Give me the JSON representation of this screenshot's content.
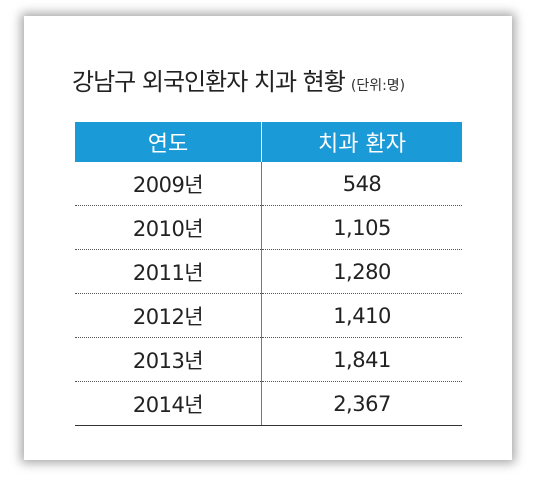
{
  "header": {
    "title": "강남구 외국인환자 치과 현황",
    "unit": "(단위:명)"
  },
  "table": {
    "columns": [
      "연도",
      "치과 환자"
    ],
    "rows": [
      [
        "2009년",
        "548"
      ],
      [
        "2010년",
        "1,105"
      ],
      [
        "2011년",
        "1,280"
      ],
      [
        "2012년",
        "1,410"
      ],
      [
        "2013년",
        "1,841"
      ],
      [
        "2014년",
        "2,367"
      ]
    ]
  }
}
